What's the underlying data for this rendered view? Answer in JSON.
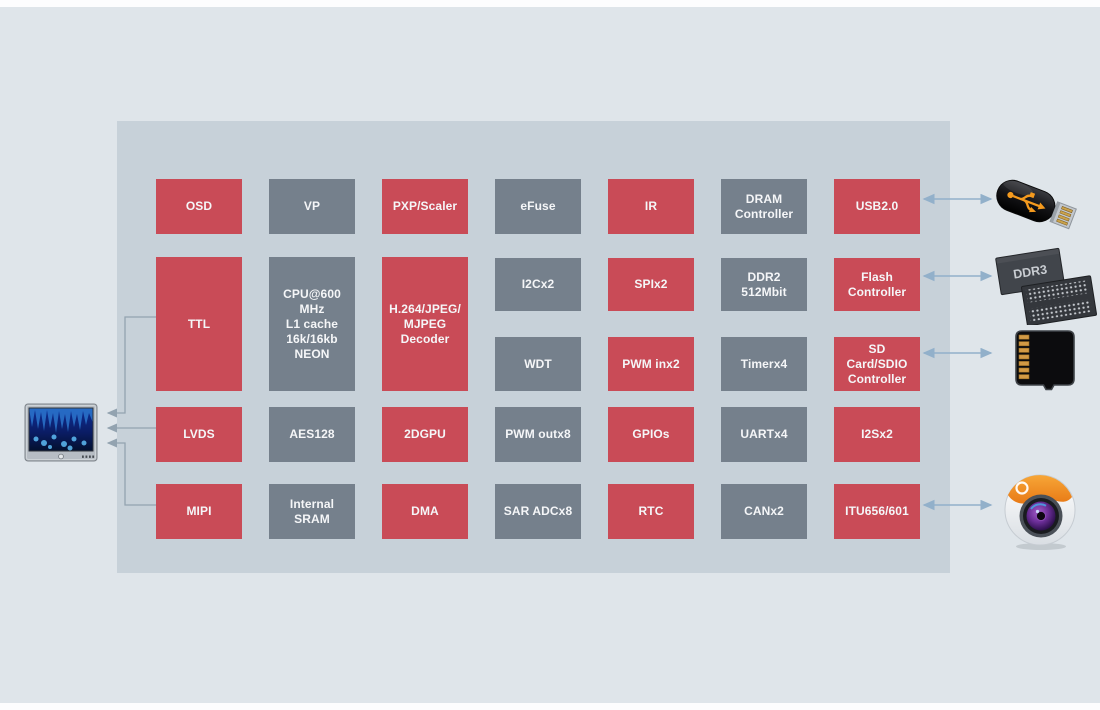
{
  "colors": {
    "page_background": "#fdfdfe",
    "canvas_background": "#dfe5ea",
    "soc_background": "#c7d1d9",
    "block_red": "#c94b57",
    "block_gray": "#75808c",
    "block_text": "#f5f6f8",
    "display_arrow": "#93a3b0",
    "device_arrow": "#92b0ca"
  },
  "soc": {
    "blocks": [
      {
        "id": "osd",
        "label": "OSD",
        "variant": "red"
      },
      {
        "id": "vp",
        "label": "VP",
        "variant": "gray"
      },
      {
        "id": "pxp",
        "label": "PXP/Scaler",
        "variant": "red"
      },
      {
        "id": "efuse",
        "label": "eFuse",
        "variant": "gray"
      },
      {
        "id": "ir",
        "label": "IR",
        "variant": "red"
      },
      {
        "id": "dram",
        "label": "DRAM\nController",
        "variant": "gray"
      },
      {
        "id": "usb2",
        "label": "USB2.0",
        "variant": "red"
      },
      {
        "id": "ttl",
        "label": "TTL",
        "variant": "red"
      },
      {
        "id": "cpu",
        "label": "CPU@600\nMHz\nL1 cache\n16k/16kb\nNEON",
        "variant": "gray"
      },
      {
        "id": "h264",
        "label": "H.264/JPEG/\nMJPEG\nDecoder",
        "variant": "red"
      },
      {
        "id": "i2c",
        "label": "I2Cx2",
        "variant": "gray"
      },
      {
        "id": "spi",
        "label": "SPIx2",
        "variant": "red"
      },
      {
        "id": "ddr2",
        "label": "DDR2\n512Mbit",
        "variant": "gray"
      },
      {
        "id": "flash",
        "label": "Flash\nController",
        "variant": "red"
      },
      {
        "id": "wdt",
        "label": "WDT",
        "variant": "gray"
      },
      {
        "id": "pwmin",
        "label": "PWM inx2",
        "variant": "red"
      },
      {
        "id": "timer",
        "label": "Timerx4",
        "variant": "gray"
      },
      {
        "id": "sdio",
        "label": "SD\nCard/SDIO\nController",
        "variant": "red"
      },
      {
        "id": "lvds",
        "label": "LVDS",
        "variant": "red"
      },
      {
        "id": "aes",
        "label": "AES128",
        "variant": "gray"
      },
      {
        "id": "gpu",
        "label": "2DGPU",
        "variant": "red"
      },
      {
        "id": "pwmout",
        "label": "PWM outx8",
        "variant": "gray"
      },
      {
        "id": "gpio",
        "label": "GPIOs",
        "variant": "red"
      },
      {
        "id": "uart",
        "label": "UARTx4",
        "variant": "gray"
      },
      {
        "id": "i2s",
        "label": "I2Sx2",
        "variant": "red"
      },
      {
        "id": "mipi",
        "label": "MIPI",
        "variant": "red"
      },
      {
        "id": "sram",
        "label": "Internal\nSRAM",
        "variant": "gray"
      },
      {
        "id": "dma",
        "label": "DMA",
        "variant": "red"
      },
      {
        "id": "sar",
        "label": "SAR ADCx8",
        "variant": "gray"
      },
      {
        "id": "rtc",
        "label": "RTC",
        "variant": "red"
      },
      {
        "id": "can",
        "label": "CANx2",
        "variant": "gray"
      },
      {
        "id": "itu",
        "label": "ITU656/601",
        "variant": "red"
      }
    ]
  },
  "externals": {
    "display": {
      "name": "lcd-display"
    },
    "usb_drive": {
      "name": "usb-flash-drive"
    },
    "ddr3": {
      "name": "ddr3-memory",
      "chip_label": "DDR3"
    },
    "microsd": {
      "name": "microsd-card"
    },
    "camera": {
      "name": "camera"
    }
  },
  "connections": [
    {
      "from": "TTL",
      "to": "lcd-display",
      "direction": "one-way"
    },
    {
      "from": "LVDS",
      "to": "lcd-display",
      "direction": "one-way"
    },
    {
      "from": "MIPI",
      "to": "lcd-display",
      "direction": "one-way"
    },
    {
      "from": "USB2.0",
      "to": "usb-flash-drive",
      "direction": "two-way"
    },
    {
      "from": "Flash Controller",
      "to": "ddr3-memory",
      "direction": "two-way"
    },
    {
      "from": "SD Card/SDIO Controller",
      "to": "microsd-card",
      "direction": "two-way"
    },
    {
      "from": "ITU656/601",
      "to": "camera",
      "direction": "two-way"
    }
  ]
}
